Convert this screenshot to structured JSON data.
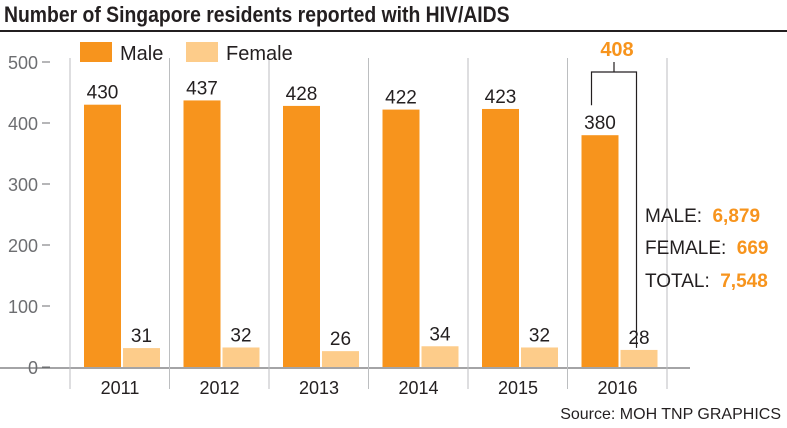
{
  "title": "Number of Singapore residents reported with HIV/AIDS",
  "colors": {
    "male": "#f7941d",
    "female": "#fdcc8a",
    "accent": "#f7941d",
    "grid": "#bcbec0"
  },
  "chart_data": {
    "type": "bar",
    "title": "Number of Singapore residents reported with HIV/AIDS",
    "categories": [
      "2011",
      "2012",
      "2013",
      "2014",
      "2015",
      "2016"
    ],
    "series": [
      {
        "name": "Male",
        "values": [
          430,
          437,
          428,
          422,
          423,
          380
        ]
      },
      {
        "name": "Female",
        "values": [
          31,
          32,
          26,
          34,
          32,
          28
        ]
      }
    ],
    "value_labels": {
      "Male": [
        "430",
        "437",
        "428",
        "422",
        "423",
        "380"
      ],
      "Female": [
        "31",
        "32",
        "26",
        "34",
        "32",
        "28"
      ]
    },
    "ylim": [
      0,
      500
    ],
    "yticks": [
      "0",
      "100",
      "200",
      "300",
      "400",
      "500"
    ],
    "legend": "top-left",
    "grid": false,
    "annotation_total_2016": "408",
    "summary": [
      {
        "key": "MALE:",
        "value": "6,879"
      },
      {
        "key": "FEMALE:",
        "value": "669"
      },
      {
        "key": "TOTAL:",
        "value": "7,548"
      }
    ],
    "source": "Source: MOH   TNP GRAPHICS"
  }
}
